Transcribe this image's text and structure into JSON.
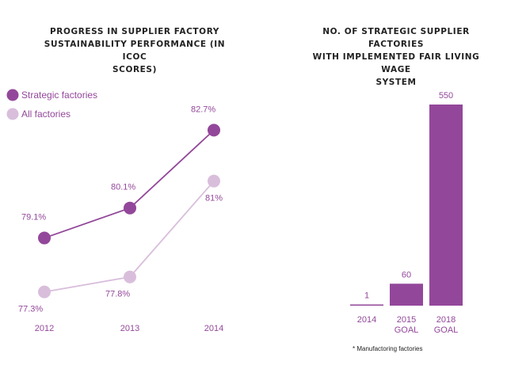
{
  "left_title": "PROGRESS IN SUPPLIER FACTORY\nSUSTAINABILITY PERFORMANCE (IN ICOC\nSCORES)",
  "right_title": "NO. OF STRATEGIC SUPPLIER FACTORIES\nWITH IMPLEMENTED FAIR LIVING WAGE\nSYSTEM",
  "footnote": "* Manufactoring factories",
  "colors": {
    "strategic": "#93479a",
    "all": "#d9bedc",
    "text": "#93479a",
    "bar": "#93479a"
  },
  "chart_data": [
    {
      "type": "line",
      "title": "PROGRESS IN SUPPLIER FACTORY SUSTAINABILITY PERFORMANCE (IN ICOC SCORES)",
      "x": [
        "2012",
        "2013",
        "2014"
      ],
      "series": [
        {
          "name": "Strategic factories",
          "values": [
            79.1,
            80.1,
            82.7
          ],
          "labels": [
            "79.1%",
            "80.1%",
            "82.7%"
          ],
          "color": "#93479a"
        },
        {
          "name": "All factories",
          "values": [
            77.3,
            77.8,
            81.0
          ],
          "labels": [
            "77.3%",
            "77.8%",
            "81%"
          ],
          "color": "#d9bedc"
        }
      ],
      "legend": "top-left",
      "grid": false
    },
    {
      "type": "bar",
      "title": "NO. OF STRATEGIC SUPPLIER FACTORIES WITH IMPLEMENTED FAIR LIVING WAGE SYSTEM",
      "categories": [
        "2014",
        "2015\nGOAL",
        "2018\nGOAL"
      ],
      "values": [
        1,
        60,
        550
      ],
      "value_labels": [
        "1",
        "60",
        "550"
      ],
      "ylim": [
        0,
        550
      ],
      "grid": false
    }
  ]
}
